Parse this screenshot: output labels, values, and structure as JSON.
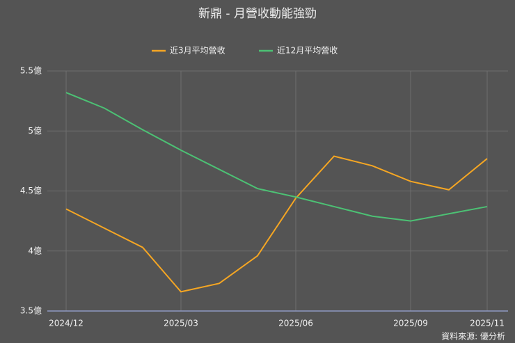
{
  "chart_data": {
    "type": "line",
    "title": "新鼎 - 月營收動能強勁",
    "categories": [
      "2024/12",
      null,
      null,
      "2025/03",
      null,
      null,
      "2025/06",
      null,
      null,
      "2025/09",
      null,
      "2025/11"
    ],
    "series": [
      {
        "name": "近3月平均營收",
        "color": "#f5a623",
        "values": [
          4.35,
          4.19,
          4.03,
          3.66,
          3.73,
          3.96,
          4.44,
          4.79,
          4.71,
          4.58,
          4.51,
          4.77
        ]
      },
      {
        "name": "近12月平均營收",
        "color": "#4cc174",
        "values": [
          5.32,
          5.19,
          5.01,
          4.84,
          4.68,
          4.52,
          4.45,
          4.37,
          4.29,
          4.25,
          4.31,
          4.37
        ]
      }
    ],
    "ylim": [
      3.5,
      5.5
    ],
    "yticks": [
      {
        "value": 3.5,
        "label": "3.5億"
      },
      {
        "value": 4,
        "label": "4億"
      },
      {
        "value": 4.5,
        "label": "4.5億"
      },
      {
        "value": 5,
        "label": "5億"
      },
      {
        "value": 5.5,
        "label": "5.5億"
      }
    ],
    "grid": true,
    "source": "資料來源: 優分析"
  }
}
